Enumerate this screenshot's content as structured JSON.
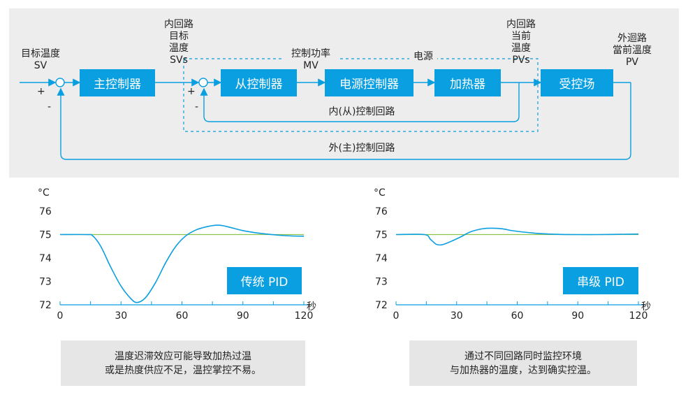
{
  "diagram": {
    "blocks": {
      "main_controller": "主控制器",
      "sub_controller": "从控制器",
      "power_controller": "电源控制器",
      "heater": "加热器",
      "controlled_field": "受控场"
    },
    "labels": {
      "target_temp_l1": "目标温度",
      "target_temp_l2": "SV",
      "inner_loop_target_l1": "内回路",
      "inner_loop_target_l2": "目标",
      "inner_loop_target_l3": "温度",
      "inner_loop_target_l4": "SVs",
      "control_power_l1": "控制功率",
      "control_power_l2": "MV",
      "power_source": "电源",
      "inner_loop_current_l1": "内回路",
      "inner_loop_current_l2": "当前",
      "inner_loop_current_l3": "温度",
      "inner_loop_current_l4": "PVs",
      "outer_loop_current_l1": "外迴路",
      "outer_loop_current_l2": "當前溫度",
      "outer_loop_current_l3": "PV",
      "inner_loop_name": "内(从)控制回路",
      "outer_loop_name": "外(主)控制回路",
      "plus": "+",
      "minus": "-"
    },
    "colors": {
      "accent": "#0a9fe0",
      "panel": "#ededed",
      "note_bg": "#e6e6e6",
      "setpoint": "#8bc34a"
    }
  },
  "chart_data": [
    {
      "type": "line",
      "badge": "传统 PID",
      "ylabel": "°C",
      "xlabel": "秒",
      "xlim": [
        0,
        120
      ],
      "ylim": [
        72,
        76
      ],
      "xticks": [
        0,
        30,
        60,
        90,
        120
      ],
      "yticks": [
        76,
        75,
        74,
        73,
        72
      ],
      "series": [
        {
          "role": "setpoint",
          "color": "#8bc34a",
          "x": [
            0,
            120
          ],
          "y": [
            75,
            75
          ]
        },
        {
          "role": "temperature",
          "color": "#0a9fe0",
          "x": [
            0,
            13,
            16,
            20,
            25,
            30,
            35,
            38,
            42,
            47,
            52,
            57,
            62,
            67,
            72,
            77,
            80,
            84,
            90,
            96,
            102,
            108,
            114,
            120
          ],
          "y": [
            75,
            75,
            74.95,
            74.5,
            73.6,
            72.8,
            72.25,
            72.1,
            72.3,
            72.95,
            73.8,
            74.5,
            74.95,
            75.2,
            75.33,
            75.4,
            75.38,
            75.3,
            75.17,
            75.08,
            75.02,
            74.97,
            74.94,
            74.93
          ]
        }
      ]
    },
    {
      "type": "line",
      "badge": "串级 PID",
      "ylabel": "°C",
      "xlabel": "秒",
      "xlim": [
        0,
        120
      ],
      "ylim": [
        72,
        76
      ],
      "xticks": [
        0,
        30,
        60,
        90,
        120
      ],
      "yticks": [
        76,
        75,
        74,
        73,
        72
      ],
      "series": [
        {
          "role": "setpoint",
          "color": "#8bc34a",
          "x": [
            0,
            120
          ],
          "y": [
            75,
            75
          ]
        },
        {
          "role": "temperature",
          "color": "#0a9fe0",
          "x": [
            0,
            14,
            17,
            20,
            23,
            27,
            32,
            37,
            43,
            48,
            53,
            58,
            65,
            72,
            80,
            90,
            100,
            110,
            120
          ],
          "y": [
            75,
            75,
            74.8,
            74.58,
            74.57,
            74.7,
            74.9,
            75.12,
            75.25,
            75.27,
            75.24,
            75.16,
            75.09,
            75.04,
            75.01,
            75.0,
            75.0,
            75.01,
            75.02
          ]
        }
      ]
    }
  ],
  "notes": {
    "left_l1": "温度迟滞效应可能导致加热过温",
    "left_l2": "或是热度供应不足，温控掌控不易。",
    "right_l1": "通过不同回路同时监控环境",
    "right_l2": "与加热器的温度，达到确实控温。"
  }
}
